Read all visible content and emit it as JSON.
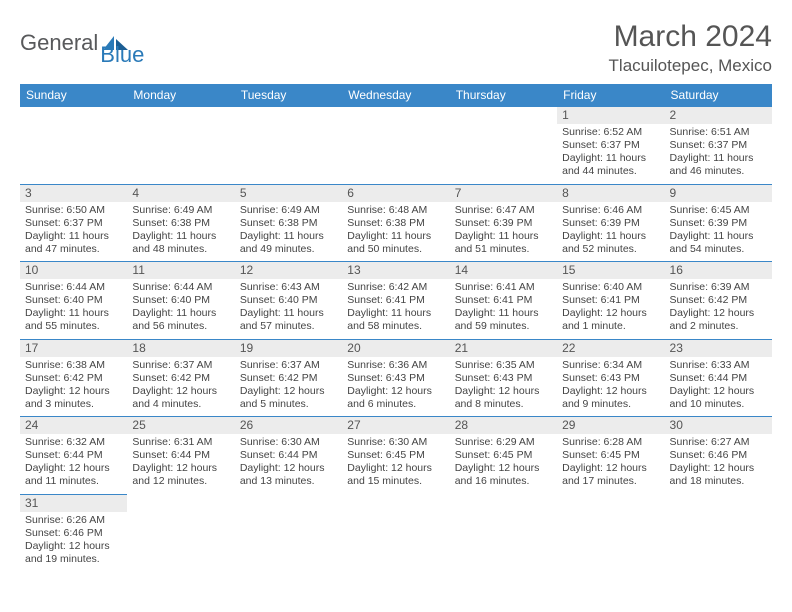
{
  "logo": {
    "text1": "General",
    "text2": "Blue"
  },
  "title": "March 2024",
  "location": "Tlacuilotepec, Mexico",
  "colors": {
    "header_bg": "#3a87c8",
    "accent": "#2a7ab8",
    "daynum_bg": "#ececec",
    "text": "#444"
  },
  "day_headers": [
    "Sunday",
    "Monday",
    "Tuesday",
    "Wednesday",
    "Thursday",
    "Friday",
    "Saturday"
  ],
  "weeks": [
    [
      null,
      null,
      null,
      null,
      null,
      {
        "n": "1",
        "sr": "Sunrise: 6:52 AM",
        "ss": "Sunset: 6:37 PM",
        "dl1": "Daylight: 11 hours",
        "dl2": "and 44 minutes."
      },
      {
        "n": "2",
        "sr": "Sunrise: 6:51 AM",
        "ss": "Sunset: 6:37 PM",
        "dl1": "Daylight: 11 hours",
        "dl2": "and 46 minutes."
      }
    ],
    [
      {
        "n": "3",
        "sr": "Sunrise: 6:50 AM",
        "ss": "Sunset: 6:37 PM",
        "dl1": "Daylight: 11 hours",
        "dl2": "and 47 minutes."
      },
      {
        "n": "4",
        "sr": "Sunrise: 6:49 AM",
        "ss": "Sunset: 6:38 PM",
        "dl1": "Daylight: 11 hours",
        "dl2": "and 48 minutes."
      },
      {
        "n": "5",
        "sr": "Sunrise: 6:49 AM",
        "ss": "Sunset: 6:38 PM",
        "dl1": "Daylight: 11 hours",
        "dl2": "and 49 minutes."
      },
      {
        "n": "6",
        "sr": "Sunrise: 6:48 AM",
        "ss": "Sunset: 6:38 PM",
        "dl1": "Daylight: 11 hours",
        "dl2": "and 50 minutes."
      },
      {
        "n": "7",
        "sr": "Sunrise: 6:47 AM",
        "ss": "Sunset: 6:39 PM",
        "dl1": "Daylight: 11 hours",
        "dl2": "and 51 minutes."
      },
      {
        "n": "8",
        "sr": "Sunrise: 6:46 AM",
        "ss": "Sunset: 6:39 PM",
        "dl1": "Daylight: 11 hours",
        "dl2": "and 52 minutes."
      },
      {
        "n": "9",
        "sr": "Sunrise: 6:45 AM",
        "ss": "Sunset: 6:39 PM",
        "dl1": "Daylight: 11 hours",
        "dl2": "and 54 minutes."
      }
    ],
    [
      {
        "n": "10",
        "sr": "Sunrise: 6:44 AM",
        "ss": "Sunset: 6:40 PM",
        "dl1": "Daylight: 11 hours",
        "dl2": "and 55 minutes."
      },
      {
        "n": "11",
        "sr": "Sunrise: 6:44 AM",
        "ss": "Sunset: 6:40 PM",
        "dl1": "Daylight: 11 hours",
        "dl2": "and 56 minutes."
      },
      {
        "n": "12",
        "sr": "Sunrise: 6:43 AM",
        "ss": "Sunset: 6:40 PM",
        "dl1": "Daylight: 11 hours",
        "dl2": "and 57 minutes."
      },
      {
        "n": "13",
        "sr": "Sunrise: 6:42 AM",
        "ss": "Sunset: 6:41 PM",
        "dl1": "Daylight: 11 hours",
        "dl2": "and 58 minutes."
      },
      {
        "n": "14",
        "sr": "Sunrise: 6:41 AM",
        "ss": "Sunset: 6:41 PM",
        "dl1": "Daylight: 11 hours",
        "dl2": "and 59 minutes."
      },
      {
        "n": "15",
        "sr": "Sunrise: 6:40 AM",
        "ss": "Sunset: 6:41 PM",
        "dl1": "Daylight: 12 hours",
        "dl2": "and 1 minute."
      },
      {
        "n": "16",
        "sr": "Sunrise: 6:39 AM",
        "ss": "Sunset: 6:42 PM",
        "dl1": "Daylight: 12 hours",
        "dl2": "and 2 minutes."
      }
    ],
    [
      {
        "n": "17",
        "sr": "Sunrise: 6:38 AM",
        "ss": "Sunset: 6:42 PM",
        "dl1": "Daylight: 12 hours",
        "dl2": "and 3 minutes."
      },
      {
        "n": "18",
        "sr": "Sunrise: 6:37 AM",
        "ss": "Sunset: 6:42 PM",
        "dl1": "Daylight: 12 hours",
        "dl2": "and 4 minutes."
      },
      {
        "n": "19",
        "sr": "Sunrise: 6:37 AM",
        "ss": "Sunset: 6:42 PM",
        "dl1": "Daylight: 12 hours",
        "dl2": "and 5 minutes."
      },
      {
        "n": "20",
        "sr": "Sunrise: 6:36 AM",
        "ss": "Sunset: 6:43 PM",
        "dl1": "Daylight: 12 hours",
        "dl2": "and 6 minutes."
      },
      {
        "n": "21",
        "sr": "Sunrise: 6:35 AM",
        "ss": "Sunset: 6:43 PM",
        "dl1": "Daylight: 12 hours",
        "dl2": "and 8 minutes."
      },
      {
        "n": "22",
        "sr": "Sunrise: 6:34 AM",
        "ss": "Sunset: 6:43 PM",
        "dl1": "Daylight: 12 hours",
        "dl2": "and 9 minutes."
      },
      {
        "n": "23",
        "sr": "Sunrise: 6:33 AM",
        "ss": "Sunset: 6:44 PM",
        "dl1": "Daylight: 12 hours",
        "dl2": "and 10 minutes."
      }
    ],
    [
      {
        "n": "24",
        "sr": "Sunrise: 6:32 AM",
        "ss": "Sunset: 6:44 PM",
        "dl1": "Daylight: 12 hours",
        "dl2": "and 11 minutes."
      },
      {
        "n": "25",
        "sr": "Sunrise: 6:31 AM",
        "ss": "Sunset: 6:44 PM",
        "dl1": "Daylight: 12 hours",
        "dl2": "and 12 minutes."
      },
      {
        "n": "26",
        "sr": "Sunrise: 6:30 AM",
        "ss": "Sunset: 6:44 PM",
        "dl1": "Daylight: 12 hours",
        "dl2": "and 13 minutes."
      },
      {
        "n": "27",
        "sr": "Sunrise: 6:30 AM",
        "ss": "Sunset: 6:45 PM",
        "dl1": "Daylight: 12 hours",
        "dl2": "and 15 minutes."
      },
      {
        "n": "28",
        "sr": "Sunrise: 6:29 AM",
        "ss": "Sunset: 6:45 PM",
        "dl1": "Daylight: 12 hours",
        "dl2": "and 16 minutes."
      },
      {
        "n": "29",
        "sr": "Sunrise: 6:28 AM",
        "ss": "Sunset: 6:45 PM",
        "dl1": "Daylight: 12 hours",
        "dl2": "and 17 minutes."
      },
      {
        "n": "30",
        "sr": "Sunrise: 6:27 AM",
        "ss": "Sunset: 6:46 PM",
        "dl1": "Daylight: 12 hours",
        "dl2": "and 18 minutes."
      }
    ],
    [
      {
        "n": "31",
        "sr": "Sunrise: 6:26 AM",
        "ss": "Sunset: 6:46 PM",
        "dl1": "Daylight: 12 hours",
        "dl2": "and 19 minutes."
      },
      null,
      null,
      null,
      null,
      null,
      null
    ]
  ]
}
